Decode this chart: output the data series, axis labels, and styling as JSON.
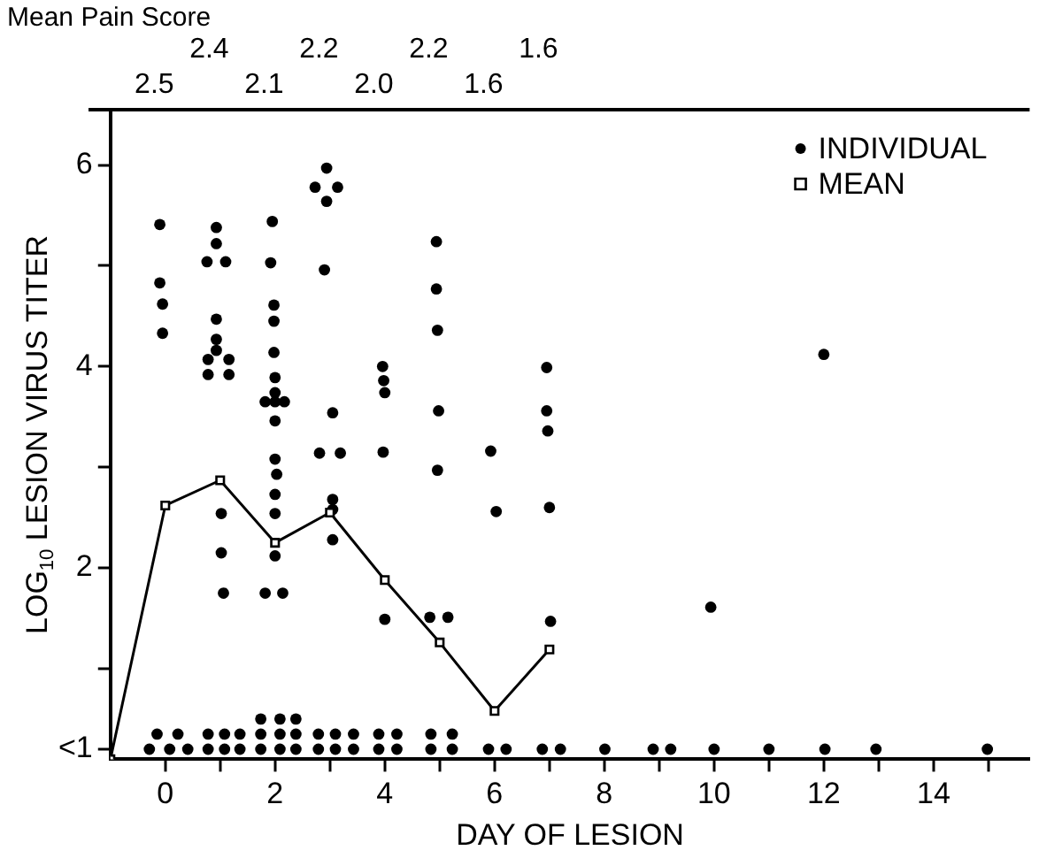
{
  "chart_data": {
    "type": "scatter",
    "xlabel": "DAY OF LESION",
    "ylabel": "LOG$_{10}$ LESION VIRUS TITER",
    "annotations": [
      "Mean Pain Score",
      "2.5",
      "2.4",
      "2.1",
      "2.2",
      "2.0",
      "2.2",
      "1.6",
      "1.6"
    ],
    "xlim": [
      -1,
      15.75
    ],
    "xticks": [
      0,
      {
        "value": 1,
        "label": null
      },
      2,
      {
        "value": 3,
        "label": null
      },
      4,
      {
        "value": 5,
        "label": null
      },
      6,
      {
        "value": 7,
        "label": null
      },
      8,
      {
        "value": 9,
        "label": null
      },
      10,
      {
        "value": 11,
        "label": null
      },
      12,
      {
        "value": 13,
        "label": null
      },
      14,
      {
        "value": 15,
        "label": null
      }
    ],
    "ylim": [
      0.1,
      6.55
    ],
    "yticks": [
      {
        "value": 0.2,
        "label": "<1"
      },
      {
        "value": 1,
        "label": null
      },
      2,
      {
        "value": 3,
        "label": null
      },
      4,
      {
        "value": 5,
        "label": null
      },
      6
    ],
    "grid": false,
    "legend": "top right",
    "series": [
      {
        "name": "INDIVIDUAL",
        "type": "scatter",
        "marker": "circle",
        "color": "#000000",
        "x": [
          -0.1,
          -0.1,
          -0.05,
          -0.05,
          0.93,
          0.93,
          0.76,
          1.1,
          0.93,
          0.93,
          0.93,
          0.78,
          1.16,
          0.78,
          1.16,
          1.02,
          1.02,
          1.06,
          1.95,
          1.92,
          1.98,
          1.98,
          1.98,
          2.0,
          2.0,
          1.82,
          2.0,
          2.17,
          2.0,
          2.0,
          2.03,
          2.0,
          2.0,
          2.0,
          1.82,
          2.14,
          2.94,
          2.73,
          3.14,
          2.94,
          2.9,
          3.05,
          2.81,
          3.19,
          3.05,
          3.05,
          3.05,
          3.96,
          3.98,
          4.0,
          3.97,
          4.0,
          4.94,
          4.94,
          4.96,
          4.98,
          4.96,
          4.82,
          5.15,
          5.93,
          6.03,
          6.95,
          6.95,
          6.97,
          7.0,
          7.02,
          9.94,
          12.0,
          -0.29,
          0.08,
          0.41,
          0.78,
          1.08,
          1.36,
          1.74,
          2.09,
          2.38,
          2.79,
          3.1,
          3.43,
          3.89,
          4.22,
          4.84,
          5.23,
          5.89,
          6.21,
          6.87,
          7.2,
          8.01,
          8.89,
          9.21,
          10.0,
          11.0,
          12.02,
          12.95,
          14.98,
          -0.15,
          0.23,
          0.78,
          1.08,
          1.36,
          1.74,
          2.09,
          2.38,
          2.79,
          3.1,
          3.43,
          3.89,
          4.22,
          4.84,
          5.23,
          1.74,
          2.09,
          2.38
        ],
        "values": [
          5.41,
          4.83,
          4.62,
          4.33,
          5.38,
          5.22,
          5.04,
          5.04,
          4.47,
          4.27,
          4.16,
          4.07,
          4.07,
          3.92,
          3.92,
          2.54,
          2.15,
          1.75,
          5.44,
          5.03,
          4.61,
          4.45,
          4.14,
          3.89,
          3.74,
          3.65,
          3.65,
          3.65,
          3.46,
          3.08,
          2.93,
          2.73,
          2.54,
          2.12,
          1.75,
          1.75,
          5.97,
          5.78,
          5.78,
          5.64,
          4.96,
          3.54,
          3.14,
          3.14,
          2.68,
          2.58,
          2.28,
          4.0,
          3.86,
          3.74,
          3.15,
          1.49,
          5.24,
          4.77,
          4.36,
          3.56,
          2.97,
          1.51,
          1.51,
          3.16,
          2.56,
          3.99,
          3.56,
          3.36,
          2.6,
          1.47,
          1.61,
          4.12,
          0.2,
          0.2,
          0.2,
          0.2,
          0.2,
          0.2,
          0.2,
          0.2,
          0.2,
          0.2,
          0.2,
          0.2,
          0.2,
          0.2,
          0.2,
          0.2,
          0.2,
          0.2,
          0.2,
          0.2,
          0.2,
          0.2,
          0.2,
          0.2,
          0.2,
          0.2,
          0.2,
          0.2,
          0.35,
          0.35,
          0.35,
          0.35,
          0.35,
          0.35,
          0.35,
          0.35,
          0.35,
          0.35,
          0.35,
          0.35,
          0.35,
          0.35,
          0.35,
          0.5,
          0.5,
          0.5
        ]
      },
      {
        "name": "MEAN",
        "type": "line",
        "marker": "square",
        "line_style": "solid",
        "color": "#000000",
        "x": [
          -1,
          0,
          1,
          2,
          3,
          4,
          5,
          6,
          7
        ],
        "values": [
          0.1,
          2.62,
          2.87,
          2.25,
          2.55,
          1.88,
          1.26,
          0.58,
          1.19
        ]
      }
    ]
  }
}
